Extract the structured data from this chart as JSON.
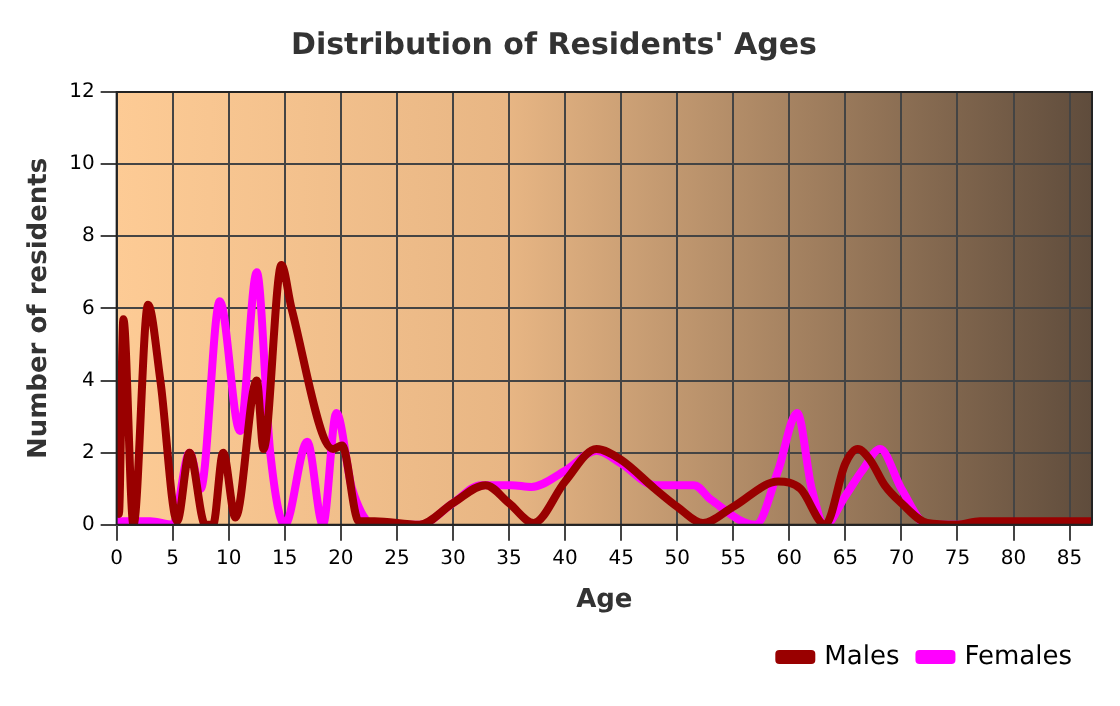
{
  "chart_data": {
    "type": "line",
    "title": "Distribution of Residents' Ages",
    "xlabel": "Age",
    "ylabel": "Number of residents",
    "xlim": [
      0,
      87
    ],
    "xticks": [
      0,
      5,
      10,
      15,
      20,
      25,
      30,
      35,
      40,
      45,
      50,
      55,
      60,
      65,
      70,
      75,
      80,
      85
    ],
    "ylim": [
      0,
      12
    ],
    "yticks": [
      0,
      2,
      4,
      6,
      8,
      10,
      12
    ],
    "grid": true,
    "legend": "bottom",
    "marker": "none",
    "line_style": "solid",
    "series": [
      {
        "name": "Males",
        "color": "#990000",
        "x": [
          0,
          0.2,
          0.6,
          1.5,
          2.8,
          3.9,
          5.4,
          6.5,
          7.9,
          8.6,
          9.5,
          10.6,
          12.5,
          13.1,
          14.7,
          15.6,
          19.3,
          20.1,
          21.6,
          23,
          27,
          30,
          32.9,
          35,
          37.2,
          40,
          42.8,
          45,
          48,
          50,
          52.3,
          55,
          59,
          61,
          63.2,
          65,
          66.1,
          67.2,
          68.5,
          70,
          72.3,
          75,
          77,
          87
        ],
        "values": [
          2,
          0.3,
          5.7,
          0,
          6.1,
          4,
          0.1,
          2,
          0,
          0,
          2,
          0.2,
          4,
          2.1,
          7.2,
          6,
          2.1,
          2.2,
          0.1,
          0.1,
          0,
          0.6,
          1.1,
          0.6,
          0.05,
          1.2,
          2.1,
          1.8,
          1,
          0.5,
          0.05,
          0.5,
          1.2,
          1,
          0,
          1.7,
          2.1,
          1.8,
          1.1,
          0.6,
          0.05,
          0,
          0.1,
          0.1
        ]
      },
      {
        "name": "Females",
        "color": "#ff00ff",
        "x": [
          0,
          3,
          5,
          6.5,
          7.5,
          9.2,
          11,
          12.5,
          13.7,
          15,
          17,
          18.4,
          19.6,
          21,
          23,
          27,
          30,
          32.5,
          35.2,
          37,
          40,
          42.8,
          45,
          48,
          51.5,
          53,
          57,
          59,
          60.7,
          62,
          63.2,
          65,
          66.5,
          68.1,
          70,
          72.3,
          80,
          87
        ],
        "values": [
          0.1,
          0.1,
          0,
          2,
          1,
          6.2,
          2.6,
          7,
          2,
          0,
          2.3,
          0,
          3.1,
          1,
          0,
          0,
          0.6,
          1.1,
          1.1,
          1.05,
          1.5,
          2.05,
          1.7,
          1.1,
          1.1,
          0.7,
          0,
          1.5,
          3.1,
          1,
          0,
          0.8,
          1.5,
          2.1,
          1,
          0,
          0,
          0
        ]
      }
    ]
  }
}
